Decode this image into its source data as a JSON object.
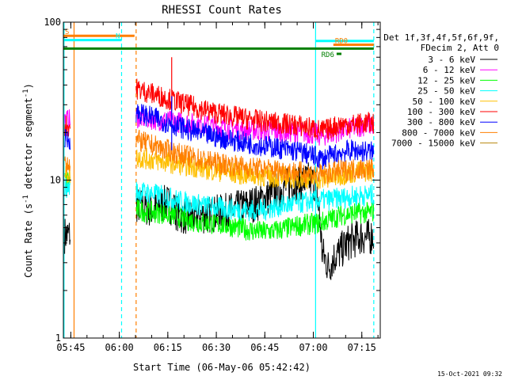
{
  "chart_data": {
    "type": "line",
    "title": "RHESSI Count Rates",
    "xlabel": "Start Time (06-May-06 05:42:42)",
    "ylabel_main": "Count Rate (s",
    "ylabel_sup": "-1",
    "ylabel_tail": " detector segment",
    "ylabel_sup2": "-1",
    "ylabel_close": ")",
    "yscale": "log",
    "ylim": [
      1,
      100
    ],
    "xlim_minutes": [
      0,
      98
    ],
    "x_ticks": [
      {
        "label": "05:45",
        "min": 2.3
      },
      {
        "label": "06:00",
        "min": 17.3
      },
      {
        "label": "06:15",
        "min": 32.3
      },
      {
        "label": "06:30",
        "min": 47.3
      },
      {
        "label": "06:45",
        "min": 62.3
      },
      {
        "label": "07:00",
        "min": 77.3
      },
      {
        "label": "07:15",
        "min": 92.3
      }
    ],
    "y_ticks": [
      {
        "label": "1",
        "value": 1
      },
      {
        "label": "10",
        "value": 10
      },
      {
        "label": "100",
        "value": 100
      }
    ],
    "legend_header": [
      "Det 1f,3f,4f,5f,6f,9f,",
      "FDecim 2, Att 0"
    ],
    "legend_position": "right",
    "series": [
      {
        "name": "3 - 6 keV",
        "color": "#000000",
        "x": [
          0,
          2,
          22.5,
          24,
          28,
          32,
          36,
          40,
          44,
          48,
          52,
          56,
          60,
          64,
          68,
          72,
          76,
          78,
          80,
          82,
          84,
          86,
          88,
          90,
          92,
          94,
          96
        ],
        "y": [
          0,
          4.5,
          7.0,
          6.8,
          6.5,
          7.2,
          6.0,
          5.8,
          6.0,
          6.2,
          6.4,
          6.8,
          7.2,
          8.0,
          9.0,
          9.6,
          10.0,
          9.5,
          3.5,
          2.8,
          3.3,
          3.6,
          4.0,
          4.2,
          4.4,
          4.3,
          4.5
        ]
      },
      {
        "name": "6 - 12 keV",
        "color": "#ff00ff",
        "x": [
          0,
          2,
          22.5,
          26,
          30,
          34,
          38,
          42,
          46,
          50,
          54,
          58,
          62,
          66,
          70,
          74,
          78,
          80,
          82,
          84,
          86,
          88,
          90,
          92,
          94,
          96
        ],
        "y": [
          0,
          24,
          25,
          24.5,
          24,
          23.5,
          23,
          22.5,
          22,
          21.5,
          21,
          20.8,
          20.5,
          20.3,
          20.2,
          20,
          19.5,
          19,
          19.5,
          20,
          20.5,
          21,
          21.5,
          22,
          22.3,
          22.5
        ]
      },
      {
        "name": "12 - 25 keV",
        "color": "#00ff00",
        "x": [
          0,
          2,
          22.5,
          26,
          30,
          34,
          38,
          42,
          46,
          50,
          54,
          58,
          62,
          66,
          70,
          74,
          78,
          80,
          82,
          84,
          86,
          88,
          90,
          92,
          94,
          96
        ],
        "y": [
          0,
          10,
          6.5,
          6.3,
          6.2,
          6.0,
          5.6,
          5.4,
          5.3,
          5.2,
          5.0,
          4.8,
          4.7,
          4.8,
          5.0,
          5.2,
          5.3,
          5.4,
          5.6,
          5.8,
          6.0,
          6.1,
          6.2,
          6.2,
          6.2,
          6.3
        ]
      },
      {
        "name": "25 - 50 keV",
        "color": "#00ffff",
        "x": [
          0,
          2,
          22.5,
          26,
          30,
          34,
          38,
          42,
          46,
          50,
          54,
          58,
          62,
          66,
          70,
          74,
          78,
          80,
          82,
          84,
          86,
          88,
          90,
          92,
          94,
          96
        ],
        "y": [
          0,
          9,
          8.5,
          8.3,
          8.0,
          7.6,
          7.2,
          7.0,
          6.8,
          6.6,
          6.5,
          6.4,
          6.5,
          6.8,
          7.0,
          7.2,
          7.4,
          7.5,
          7.5,
          7.6,
          7.7,
          7.8,
          7.9,
          8.0,
          8.0,
          8.1
        ]
      },
      {
        "name": "50 - 100 keV",
        "color": "#ffbf00",
        "x": [
          0,
          2,
          22.5,
          26,
          30,
          34,
          38,
          42,
          46,
          50,
          54,
          58,
          62,
          66,
          70,
          74,
          78,
          80,
          82,
          84,
          86,
          88,
          90,
          92,
          94,
          96
        ],
        "y": [
          0,
          11,
          14,
          13.6,
          13.2,
          12.8,
          12.4,
          12.0,
          11.6,
          11.3,
          11.0,
          10.8,
          10.6,
          10.5,
          10.4,
          10.3,
          10.2,
          10.1,
          10.3,
          10.5,
          10.8,
          11.0,
          11.2,
          11.3,
          11.4,
          11.5
        ]
      },
      {
        "name": "100 - 300 keV",
        "color": "#ff0000",
        "x": [
          0,
          2,
          22.5,
          26,
          30,
          34,
          38,
          42,
          46,
          50,
          54,
          58,
          62,
          66,
          70,
          74,
          78,
          80,
          82,
          84,
          86,
          88,
          90,
          92,
          94,
          96
        ],
        "y": [
          0,
          22,
          38,
          36,
          34,
          32,
          30,
          28.5,
          27,
          26,
          25,
          24.2,
          23.5,
          23,
          22.5,
          22,
          21,
          20.5,
          21,
          22,
          22.5,
          22.5,
          22.5,
          22.8,
          23,
          23
        ]
      },
      {
        "name": "300 - 800 keV",
        "color": "#0000ff",
        "x": [
          0,
          2,
          22.5,
          26,
          30,
          34,
          38,
          42,
          46,
          50,
          54,
          58,
          62,
          66,
          70,
          74,
          78,
          80,
          82,
          84,
          86,
          88,
          90,
          92,
          94,
          96
        ],
        "y": [
          0,
          18,
          27,
          25.5,
          24,
          22.5,
          21,
          19.8,
          19,
          18.3,
          17.6,
          17,
          16.5,
          16,
          15.5,
          15,
          14,
          13.6,
          14,
          14.5,
          15,
          15.3,
          15.5,
          15.3,
          15.2,
          15
        ]
      },
      {
        "name": "800 - 7000 keV",
        "color": "#ff7f00",
        "x": [
          0,
          2,
          22.5,
          26,
          30,
          34,
          38,
          42,
          46,
          50,
          54,
          58,
          62,
          66,
          70,
          74,
          78,
          80,
          82,
          84,
          86,
          88,
          90,
          92,
          94,
          96
        ],
        "y": [
          0,
          13,
          18,
          17,
          16,
          15,
          14.2,
          13.6,
          13,
          12.6,
          12.3,
          12,
          11.8,
          11.6,
          11.4,
          11.2,
          11,
          10.8,
          11,
          11.3,
          11.5,
          11.6,
          11.7,
          11.8,
          11.8,
          11.8
        ]
      },
      {
        "name": "7000 - 15000 keV",
        "color": "#b8860b",
        "x": [],
        "y": []
      }
    ],
    "spikes": [
      {
        "x": 33.5,
        "y_top": 60,
        "color": "#ff0000"
      },
      {
        "x": 33.5,
        "y_top": 34,
        "color": "#0000ff"
      }
    ],
    "vertical_lines": [
      {
        "x": 0.2,
        "color": "#00ffff",
        "dash": false
      },
      {
        "x": 3.3,
        "color": "#ff7f00",
        "dash": false
      },
      {
        "x": 18.0,
        "color": "#00ffff",
        "dash": true
      },
      {
        "x": 22.5,
        "color": "#ff7f00",
        "dash": true
      },
      {
        "x": 78.0,
        "color": "#00ffff",
        "dash": false
      },
      {
        "x": 96.0,
        "color": "#00ffff",
        "dash": true
      }
    ],
    "flag_bars": [
      {
        "x0": 0,
        "x1": 22,
        "y": 82,
        "color": "#ff7f00",
        "label": "S",
        "label_at": "start"
      },
      {
        "x0": 0,
        "x1": 18,
        "y": 77,
        "color": "#00ffff",
        "label": "N",
        "label_at": "end"
      },
      {
        "x0": 0,
        "x1": 96,
        "y": 68,
        "color": "#007f00",
        "label": "",
        "label_at": "none"
      },
      {
        "x0": 78,
        "x1": 96,
        "y": 76,
        "color": "#00ffff",
        "label": "",
        "label_at": "none"
      },
      {
        "x0": 83.5,
        "x1": 96,
        "y": 72,
        "color": "#ff7f00",
        "label": "RD0",
        "label_at": "start"
      },
      {
        "x0": 84.5,
        "x1": 86,
        "y": 63,
        "color": "#007f00",
        "label": "RD6",
        "label_at": "before"
      }
    ],
    "footer_date": "15-Oct-2021 09:32"
  }
}
